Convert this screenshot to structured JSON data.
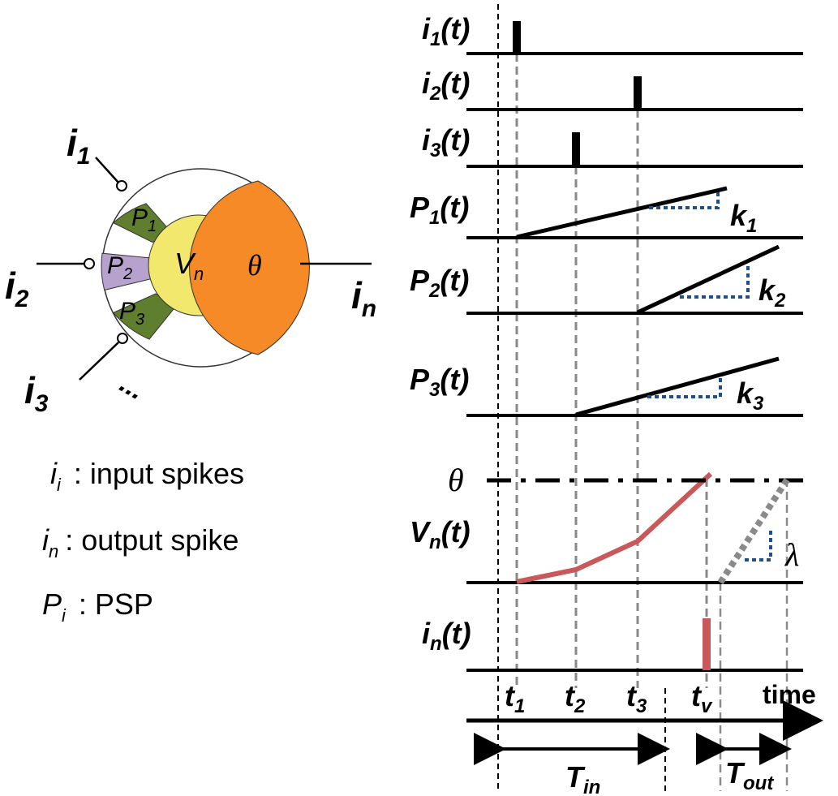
{
  "colors": {
    "green": "#5f7f2e",
    "purple": "#b6a2cc",
    "yellow": "#f2e86e",
    "orange": "#f58a26",
    "red": "#c8585a",
    "blue": "#1f4e8c",
    "grey": "#8a8a8a"
  },
  "neuron": {
    "inputs": [
      {
        "base": "i",
        "sub": "1"
      },
      {
        "base": "i",
        "sub": "2"
      },
      {
        "base": "i",
        "sub": "3"
      }
    ],
    "ellipsis": "...",
    "synapses": [
      {
        "base": "P",
        "sub": "1"
      },
      {
        "base": "P",
        "sub": "2"
      },
      {
        "base": "P",
        "sub": "3"
      }
    ],
    "soma": {
      "base": "V",
      "sub": "n"
    },
    "threshold": "θ",
    "output": {
      "base": "i",
      "sub": "n"
    }
  },
  "legend": [
    {
      "base": "i",
      "sub": "i",
      "desc": ": input spikes"
    },
    {
      "base": "i",
      "sub": "n",
      "desc": ": output spike"
    },
    {
      "base": "P",
      "sub": "i",
      "desc": ": PSP"
    }
  ],
  "rows": {
    "i1": {
      "base": "i",
      "sub": "1",
      "tail": "(t)"
    },
    "i2": {
      "base": "i",
      "sub": "2",
      "tail": "(t)"
    },
    "i3": {
      "base": "i",
      "sub": "3",
      "tail": "(t)"
    },
    "p1": {
      "base": "P",
      "sub": "1",
      "tail": "(t)"
    },
    "p2": {
      "base": "P",
      "sub": "2",
      "tail": "(t)"
    },
    "p3": {
      "base": "P",
      "sub": "3",
      "tail": "(t)"
    },
    "vn": {
      "base": "V",
      "sub": "n",
      "tail": "(t)"
    },
    "in": {
      "base": "i",
      "sub": "n",
      "tail": "(t)"
    }
  },
  "slopes": [
    {
      "base": "k",
      "sub": "1"
    },
    {
      "base": "k",
      "sub": "2"
    },
    {
      "base": "k",
      "sub": "3"
    }
  ],
  "theta_label": "θ",
  "lambda_label": "λ",
  "time_ticks": [
    {
      "base": "t",
      "sub": "1"
    },
    {
      "base": "t",
      "sub": "2"
    },
    {
      "base": "t",
      "sub": "3"
    },
    {
      "base": "t",
      "sub": "v"
    }
  ],
  "time_label": "time",
  "intervals": {
    "tin": {
      "base": "T",
      "sub": "in"
    },
    "tout": {
      "base": "T",
      "sub": "out"
    }
  }
}
